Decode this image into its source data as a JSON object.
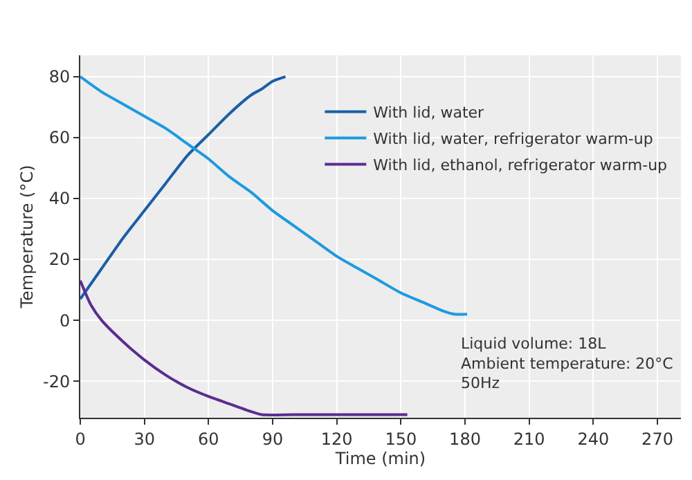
{
  "chart_data": {
    "type": "line",
    "xlabel": "Time (min)",
    "ylabel": "Temperature (°C)",
    "xlim": [
      0,
      281
    ],
    "xticks": [
      0,
      30,
      60,
      90,
      120,
      150,
      180,
      210,
      240,
      270
    ],
    "ylim": [
      -32,
      87
    ],
    "yticks": [
      -20,
      0,
      20,
      40,
      60,
      80
    ],
    "grid": true,
    "legend": "top right",
    "line_style": "solid",
    "marker": "none",
    "annotations": [
      "Liquid volume: 18L\nAmbient temperature: 20°C\n50Hz"
    ],
    "series": [
      {
        "name": "With lid, water",
        "color": "#1a5fa8",
        "x": [
          0,
          10,
          20,
          30,
          40,
          50,
          60,
          70,
          80,
          85,
          90,
          96
        ],
        "values": [
          7,
          17,
          27,
          36,
          45,
          54,
          61,
          68,
          74,
          76,
          78.5,
          80
        ]
      },
      {
        "name": "With lid, water, refrigerator warm-up",
        "color": "#1e9ae0",
        "x": [
          0,
          10,
          20,
          30,
          40,
          50,
          60,
          70,
          80,
          90,
          100,
          110,
          120,
          130,
          140,
          150,
          160,
          170,
          175,
          181
        ],
        "values": [
          80,
          75,
          71,
          67,
          63,
          58,
          53,
          47,
          42,
          36,
          31,
          26,
          21,
          17,
          13,
          9,
          6,
          3,
          2,
          2
        ]
      },
      {
        "name": "With lid, ethanol, refrigerator warm-up",
        "color": "#5a2d91",
        "x": [
          0,
          5,
          10,
          20,
          30,
          40,
          50,
          60,
          70,
          80,
          85,
          100,
          153
        ],
        "values": [
          13,
          5,
          0,
          -7,
          -13,
          -18,
          -22,
          -25,
          -27.5,
          -30,
          -31,
          -31,
          -31
        ]
      }
    ]
  }
}
